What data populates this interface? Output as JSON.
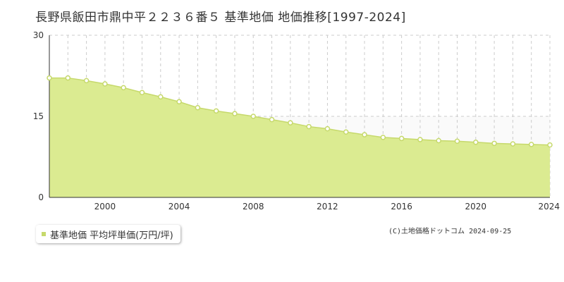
{
  "chart_data": {
    "type": "area",
    "title": "長野県飯田市鼎中平２２３６番５ 基準地価 地価推移[1997-2024]",
    "x": [
      1997,
      1998,
      1999,
      2000,
      2001,
      2002,
      2003,
      2004,
      2005,
      2006,
      2007,
      2008,
      2009,
      2010,
      2011,
      2012,
      2013,
      2014,
      2015,
      2016,
      2017,
      2018,
      2019,
      2020,
      2021,
      2022,
      2023,
      2024
    ],
    "series": [
      {
        "name": "基準地価 平均坪単価(万円/坪)",
        "values": [
          22.1,
          22.1,
          21.6,
          21.0,
          20.3,
          19.4,
          18.6,
          17.7,
          16.6,
          16.0,
          15.5,
          15.0,
          14.4,
          13.8,
          13.1,
          12.7,
          12.1,
          11.6,
          11.1,
          10.9,
          10.7,
          10.5,
          10.4,
          10.2,
          10.0,
          9.9,
          9.8,
          9.7
        ]
      }
    ],
    "x_ticks": [
      "2000",
      "2004",
      "2008",
      "2012",
      "2016",
      "2020",
      "2024"
    ],
    "y_ticks": [
      "0",
      "15",
      "30"
    ],
    "xlim": [
      1997,
      2024
    ],
    "ylim": [
      0,
      30
    ],
    "grid": true,
    "legend_placement": "bottom-left",
    "colors": {
      "fill": "#dbeb91",
      "line": "#c6d96b",
      "marker_fill": "#ffffff",
      "grid": "#cccccc"
    }
  },
  "copyright": "(C)土地価格ドットコム 2024-09-25"
}
